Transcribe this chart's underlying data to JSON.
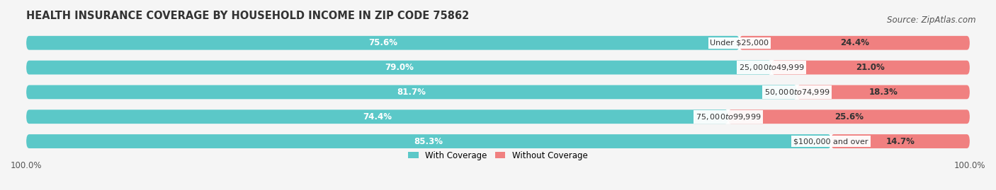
{
  "title": "HEALTH INSURANCE COVERAGE BY HOUSEHOLD INCOME IN ZIP CODE 75862",
  "source": "Source: ZipAtlas.com",
  "categories": [
    "Under $25,000",
    "$25,000 to $49,999",
    "$50,000 to $74,999",
    "$75,000 to $99,999",
    "$100,000 and over"
  ],
  "with_coverage": [
    75.6,
    79.0,
    81.7,
    74.4,
    85.3
  ],
  "without_coverage": [
    24.4,
    21.0,
    18.3,
    25.6,
    14.7
  ],
  "color_with": "#5bc8c8",
  "color_without": "#f08080",
  "bg_color": "#f5f5f5",
  "bar_bg": "#ffffff",
  "bar_height": 0.55,
  "xlim": [
    0,
    100
  ],
  "legend_with": "With Coverage",
  "legend_without": "Without Coverage",
  "title_fontsize": 10.5,
  "label_fontsize": 8.5,
  "tick_fontsize": 8.5,
  "source_fontsize": 8.5
}
